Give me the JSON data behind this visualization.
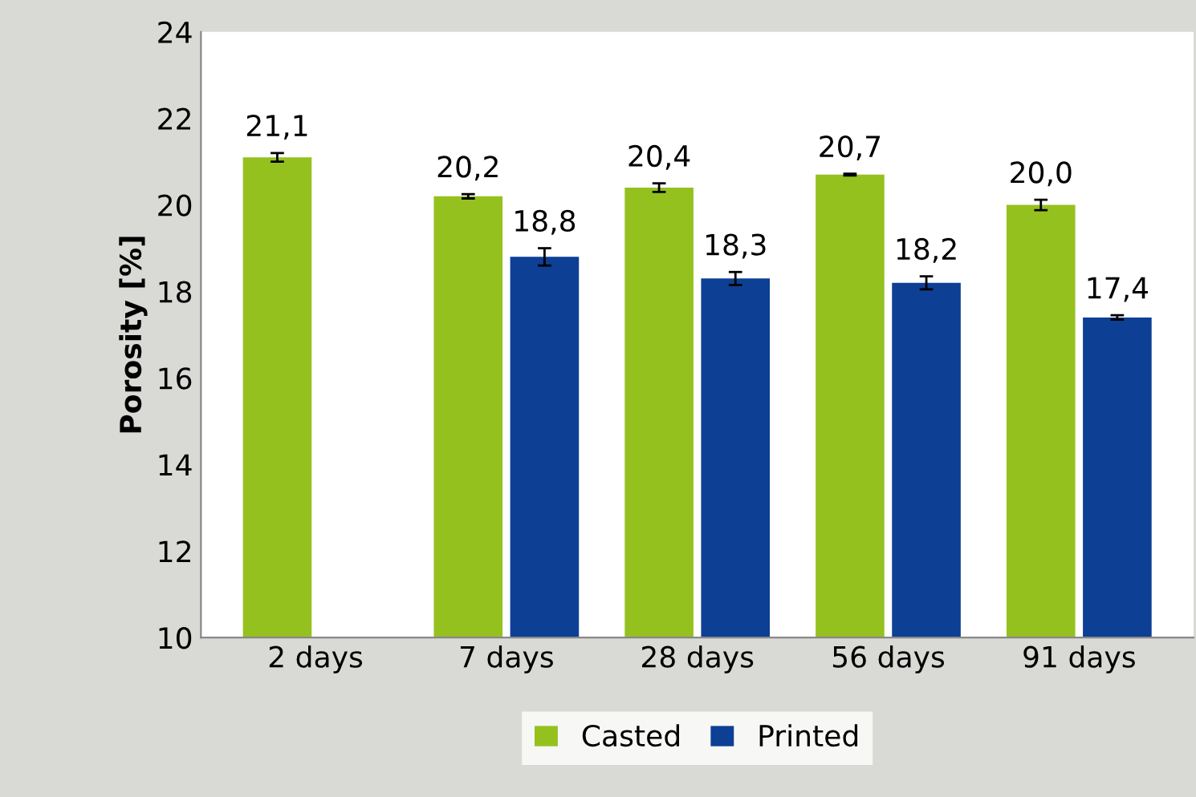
{
  "chart_data": {
    "type": "bar",
    "ylabel": "Porosity [%]",
    "categories": [
      "2 days",
      "7 days",
      "28 days",
      "56 days",
      "91 days"
    ],
    "series": [
      {
        "name": "Casted",
        "color": "#95c11f",
        "values": [
          21.1,
          20.2,
          20.4,
          20.7,
          20.0
        ],
        "errors": [
          0.1,
          0.05,
          0.1,
          0.02,
          0.12
        ],
        "value_labels": [
          "21,1",
          "20,2",
          "20,4",
          "20,7",
          "20,0"
        ]
      },
      {
        "name": "Printed",
        "color": "#0d3f94",
        "values": [
          null,
          18.8,
          18.3,
          18.2,
          17.4
        ],
        "errors": [
          null,
          0.2,
          0.15,
          0.15,
          0.05
        ],
        "value_labels": [
          null,
          "18,8",
          "18,3",
          "18,2",
          "17,4"
        ]
      }
    ],
    "ylim": [
      10,
      24
    ],
    "yticks": [
      10,
      12,
      14,
      16,
      18,
      20,
      22,
      24
    ],
    "grid": false,
    "legend": "bottom"
  }
}
